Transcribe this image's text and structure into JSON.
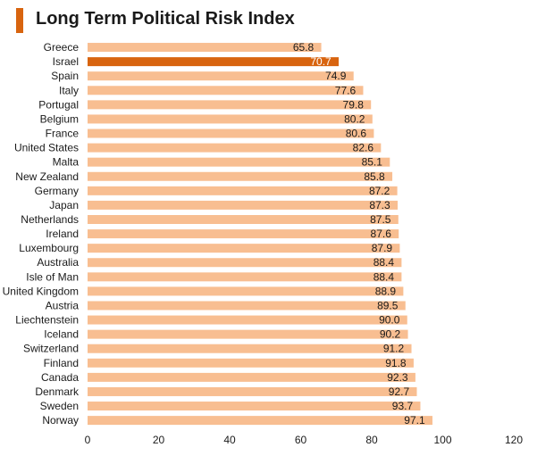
{
  "colors": {
    "accent": "#d8640f",
    "bar": "#f8be91",
    "highlight_bar": "#d8640f",
    "title_marker": "#d8640f"
  },
  "chart_data": {
    "type": "bar",
    "orientation": "horizontal",
    "title": "Long Term Political Risk Index",
    "xlabel": "",
    "ylabel": "",
    "xlim": [
      0,
      120
    ],
    "xticks": [
      0,
      20,
      40,
      60,
      80,
      100,
      120
    ],
    "grid": false,
    "legend": "none",
    "highlight_category": "Israel",
    "categories": [
      "Greece",
      "Israel",
      "Spain",
      "Italy",
      "Portugal",
      "Belgium",
      "France",
      "United States",
      "Malta",
      "New Zealand",
      "Germany",
      "Japan",
      "Netherlands",
      "Ireland",
      "Luxembourg",
      "Australia",
      "Isle of Man",
      "United Kingdom",
      "Austria",
      "Liechtenstein",
      "Iceland",
      "Switzerland",
      "Finland",
      "Canada",
      "Denmark",
      "Sweden",
      "Norway"
    ],
    "values": [
      65.8,
      70.7,
      74.9,
      77.6,
      79.8,
      80.2,
      80.6,
      82.6,
      85.1,
      85.8,
      87.2,
      87.3,
      87.5,
      87.6,
      87.9,
      88.4,
      88.4,
      88.9,
      89.5,
      90.0,
      90.2,
      91.2,
      91.8,
      92.3,
      92.7,
      93.7,
      97.1
    ],
    "labels": [
      "65.8",
      "70.7",
      "74.9",
      "77.6",
      "79.8",
      "80.2",
      "80.6",
      "82.6",
      "85.1",
      "85.8",
      "87.2",
      "87.3",
      "87.5",
      "87.6",
      "87.9",
      "88.4",
      "88.4",
      "88.9",
      "89.5",
      "90.0",
      "90.2",
      "91.2",
      "91.8",
      "92.3",
      "92.7",
      "93.7",
      "97.1"
    ]
  }
}
